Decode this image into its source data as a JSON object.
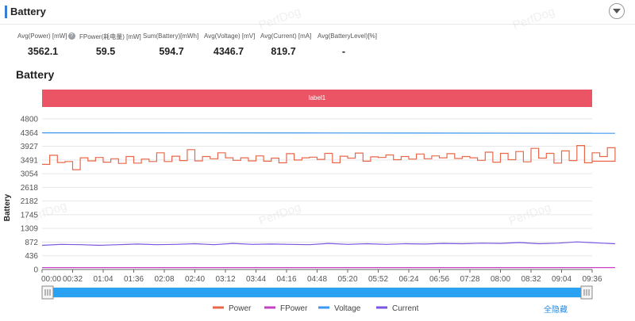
{
  "header": {
    "title": "Battery"
  },
  "metrics": [
    {
      "label": "Avg(Power) [mW]",
      "value": "3562.1",
      "help": true
    },
    {
      "label": "FPower(耗电量) [mW]",
      "value": "59.5"
    },
    {
      "label": "Sum(Battery)[mWh]",
      "value": "594.7"
    },
    {
      "label": "Avg(Voltage) [mV]",
      "value": "4346.7"
    },
    {
      "label": "Avg(Current) [mA]",
      "value": "819.7"
    },
    {
      "label": "Avg(BatteryLevel)[%]",
      "value": "-"
    }
  ],
  "watermark": "PerfDog",
  "chart_data": {
    "type": "line",
    "title": "Battery",
    "label_band": "label1",
    "ylabel": "Battery",
    "ylim": [
      0,
      4800
    ],
    "yticks": [
      0,
      436,
      872,
      1309,
      1745,
      2182,
      2618,
      3054,
      3491,
      3927,
      4364,
      4800
    ],
    "xticks": [
      "00:00",
      "00:32",
      "01:04",
      "01:36",
      "02:08",
      "02:40",
      "03:12",
      "03:44",
      "04:16",
      "04:48",
      "05:20",
      "05:52",
      "06:24",
      "06:56",
      "07:28",
      "08:00",
      "08:32",
      "09:04",
      "09:36"
    ],
    "grid": "horizontal",
    "legend": "bottom",
    "series": [
      {
        "name": "Power",
        "color": "#e8684a",
        "x_sec": [
          0,
          8,
          16,
          24,
          32,
          40,
          48,
          56,
          64,
          72,
          80,
          88,
          96,
          104,
          112,
          120,
          128,
          136,
          144,
          152,
          160,
          168,
          176,
          184,
          192,
          200,
          208,
          216,
          224,
          232,
          240,
          248,
          256,
          264,
          272,
          280,
          288,
          296,
          304,
          312,
          320,
          328,
          336,
          344,
          352,
          360,
          368,
          376,
          384,
          392,
          400,
          408,
          416,
          424,
          432,
          440,
          448,
          456,
          464,
          472,
          480,
          488,
          496,
          504,
          512,
          520,
          528,
          536,
          544,
          552,
          560,
          568,
          576,
          584,
          592,
          600
        ],
        "values": [
          3350,
          3640,
          3410,
          3440,
          3180,
          3560,
          3460,
          3570,
          3420,
          3530,
          3380,
          3600,
          3390,
          3520,
          3440,
          3720,
          3440,
          3610,
          3470,
          3820,
          3460,
          3600,
          3530,
          3720,
          3560,
          3480,
          3560,
          3460,
          3620,
          3450,
          3550,
          3400,
          3690,
          3490,
          3560,
          3580,
          3510,
          3700,
          3400,
          3610,
          3550,
          3710,
          3450,
          3590,
          3570,
          3650,
          3500,
          3600,
          3520,
          3680,
          3530,
          3620,
          3560,
          3690,
          3540,
          3600,
          3560,
          3480,
          3740,
          3420,
          3700,
          3500,
          3760,
          3430,
          3860,
          3550,
          3700,
          3390,
          3780,
          3470,
          3950,
          3400,
          3720,
          3600,
          3880,
          3450
        ]
      },
      {
        "name": "FPower",
        "color": "#c342c6",
        "x_sec": [
          0,
          600
        ],
        "values": [
          60,
          60
        ]
      },
      {
        "name": "Voltage",
        "color": "#3d9af2",
        "x_sec": [
          0,
          300,
          600
        ],
        "values": [
          4355,
          4350,
          4340
        ]
      },
      {
        "name": "Current",
        "color": "#7a55e0",
        "x_sec": [
          0,
          20,
          40,
          60,
          80,
          100,
          120,
          140,
          160,
          180,
          200,
          220,
          240,
          260,
          280,
          300,
          320,
          340,
          360,
          380,
          400,
          420,
          440,
          460,
          480,
          500,
          520,
          540,
          560,
          580,
          600
        ],
        "values": [
          770,
          800,
          790,
          770,
          790,
          810,
          790,
          800,
          820,
          790,
          830,
          800,
          810,
          800,
          790,
          830,
          800,
          820,
          800,
          820,
          810,
          830,
          820,
          840,
          830,
          860,
          820,
          840,
          880,
          850,
          820
        ]
      }
    ]
  },
  "zoom_slider": {
    "start": 0,
    "end": 100
  },
  "hide_all": "全隐藏"
}
